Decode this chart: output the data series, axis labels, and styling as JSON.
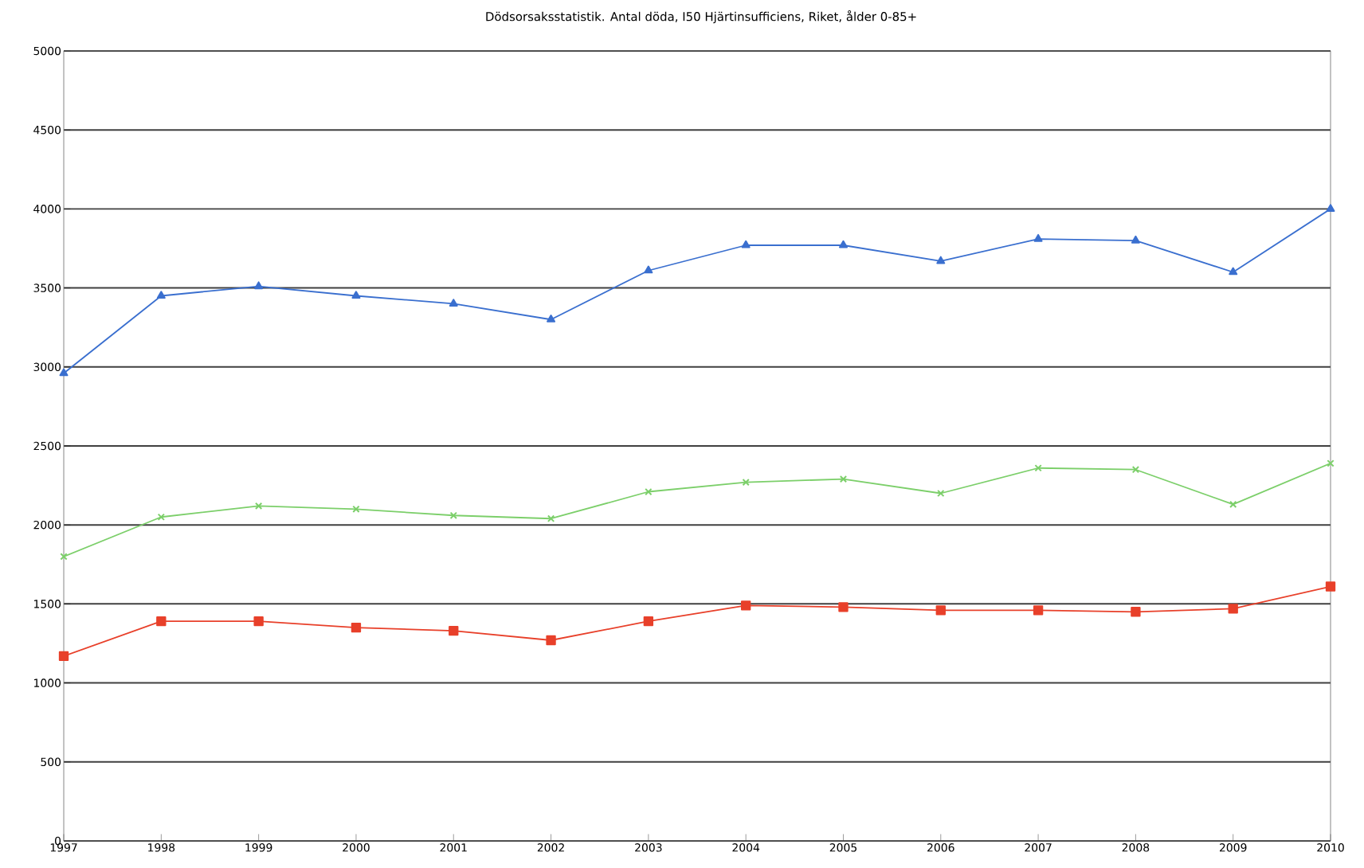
{
  "chart_data": {
    "type": "line",
    "title": "Dödsorsaksstatistik. Antal döda, I50 Hjärtinsufficiens, Riket, ålder 0-85+",
    "x": [
      1997,
      1998,
      1999,
      2000,
      2001,
      2002,
      2003,
      2004,
      2005,
      2006,
      2007,
      2008,
      2009,
      2010
    ],
    "series": [
      {
        "color": "#3a6fcf",
        "marker": "triangle",
        "values": [
          2960,
          3450,
          3510,
          3450,
          3400,
          3300,
          3610,
          3770,
          3770,
          3670,
          3810,
          3800,
          3600,
          4000
        ]
      },
      {
        "color": "#7ccf6a",
        "marker": "cross",
        "values": [
          1800,
          2050,
          2120,
          2100,
          2060,
          2040,
          2210,
          2270,
          2290,
          2200,
          2360,
          2350,
          2130,
          2390
        ]
      },
      {
        "color": "#e8402a",
        "marker": "square",
        "values": [
          1170,
          1390,
          1390,
          1350,
          1330,
          1270,
          1390,
          1490,
          1480,
          1460,
          1460,
          1450,
          1470,
          1610
        ]
      }
    ],
    "xlim": [
      1997,
      2010
    ],
    "ylim": [
      0,
      5000
    ],
    "xticks": [
      1997,
      1998,
      1999,
      2000,
      2001,
      2002,
      2003,
      2004,
      2005,
      2006,
      2007,
      2008,
      2009,
      2010
    ],
    "yticks": [
      0,
      500,
      1000,
      1500,
      2000,
      2500,
      3000,
      3500,
      4000,
      4500,
      5000
    ],
    "grid": "y",
    "line_style": "solid"
  }
}
